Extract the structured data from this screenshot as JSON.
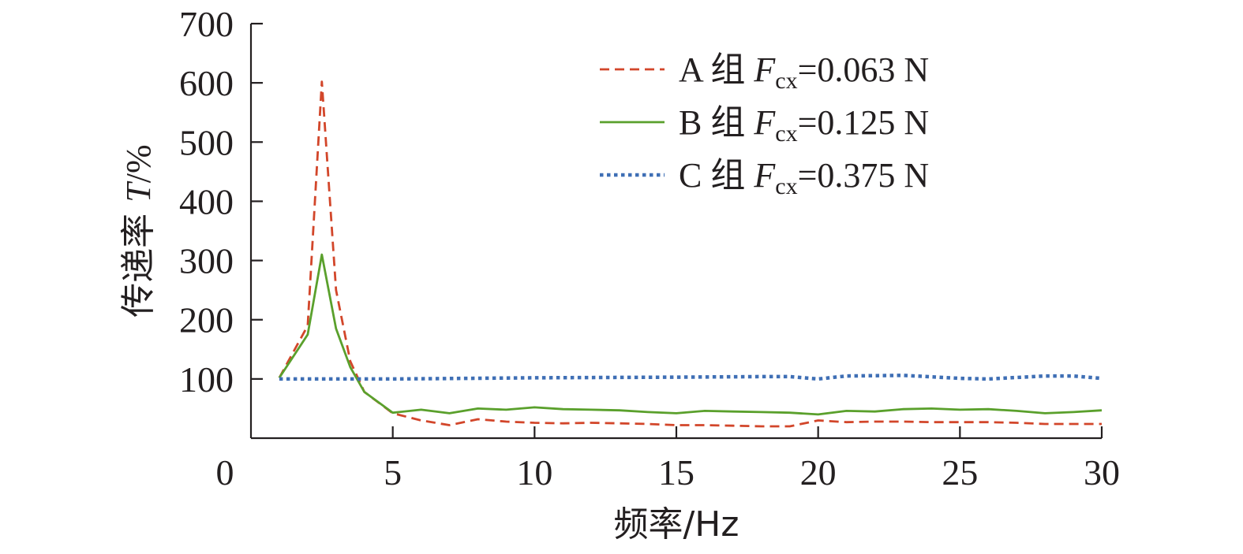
{
  "chart_data": {
    "type": "line",
    "xlabel": "频率/Hz",
    "ylabel_prefix": "传递率 ",
    "ylabel_var": "T",
    "ylabel_unit": "/%",
    "xlim": [
      0,
      30
    ],
    "ylim": [
      0,
      700
    ],
    "x_ticks": [
      0,
      5,
      10,
      15,
      20,
      25,
      30
    ],
    "y_ticks": [
      100,
      200,
      300,
      400,
      500,
      600,
      700
    ],
    "y_origin_label": "0",
    "grid": false,
    "legend_position": "top-right",
    "series": [
      {
        "group": "A 组 ",
        "var": "F",
        "sub": "cx",
        "value": "=0.063 N",
        "color": "#d2462a",
        "style": "dashed",
        "x": [
          1,
          2,
          2.5,
          3,
          3.5,
          4,
          5,
          6,
          7,
          8,
          9,
          10,
          11,
          12,
          13,
          14,
          15,
          16,
          17,
          18,
          19,
          20,
          21,
          22,
          23,
          24,
          25,
          26,
          27,
          28,
          29,
          30
        ],
        "y": [
          102,
          190,
          602,
          250,
          130,
          78,
          42,
          30,
          22,
          32,
          28,
          26,
          25,
          26,
          25,
          24,
          22,
          22,
          21,
          20,
          20,
          30,
          27,
          28,
          28,
          27,
          27,
          27,
          26,
          24,
          24,
          24
        ]
      },
      {
        "group": "B 组 ",
        "var": "F",
        "sub": "cx",
        "value": "=0.125 N",
        "color": "#5aa02c",
        "style": "solid",
        "x": [
          1,
          2,
          2.5,
          3,
          3.5,
          4,
          5,
          6,
          7,
          8,
          9,
          10,
          11,
          12,
          13,
          14,
          15,
          16,
          17,
          18,
          19,
          20,
          21,
          22,
          23,
          24,
          25,
          26,
          27,
          28,
          29,
          30
        ],
        "y": [
          102,
          175,
          310,
          185,
          120,
          78,
          43,
          48,
          42,
          50,
          48,
          52,
          49,
          48,
          47,
          44,
          42,
          46,
          45,
          44,
          43,
          40,
          46,
          45,
          49,
          50,
          48,
          49,
          46,
          42,
          44,
          47
        ]
      },
      {
        "group": "C 组 ",
        "var": "F",
        "sub": "cx",
        "value": "=0.375 N",
        "color": "#3f6fb5",
        "style": "dotted",
        "x": [
          1,
          5,
          10,
          15,
          18,
          19,
          20,
          21,
          23,
          25,
          26,
          28,
          29,
          30
        ],
        "y": [
          100,
          100,
          102,
          103,
          104,
          104,
          100,
          105,
          106,
          101,
          100,
          105,
          105,
          101
        ]
      }
    ]
  }
}
